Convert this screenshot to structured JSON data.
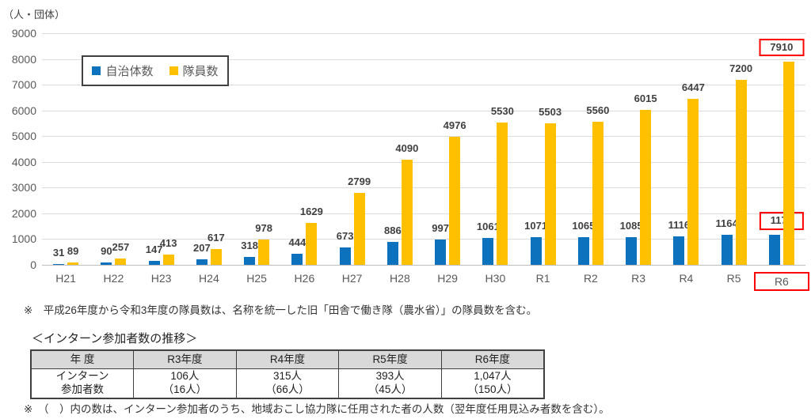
{
  "chart_data": [
    {
      "type": "bar",
      "title": "",
      "unit_label": "（人・団体）",
      "categories": [
        "H21",
        "H22",
        "H23",
        "H24",
        "H25",
        "H26",
        "H27",
        "H28",
        "H29",
        "H30",
        "R1",
        "R2",
        "R3",
        "R4",
        "R5",
        "R6"
      ],
      "series": [
        {
          "key": "municipalities",
          "name": "自治体数",
          "color": "#0D72BE",
          "values": [
            31,
            90,
            147,
            207,
            318,
            444,
            673,
            886,
            997,
            1061,
            1071,
            1065,
            1085,
            1116,
            1164,
            1176
          ]
        },
        {
          "key": "members",
          "name": "隊員数",
          "color": "#FFC000",
          "values": [
            89,
            257,
            413,
            617,
            978,
            1629,
            2799,
            4090,
            4976,
            5530,
            5503,
            5560,
            6015,
            6447,
            7200,
            7910
          ]
        }
      ],
      "xlabel": "",
      "ylabel": "",
      "ylim": [
        0,
        9000
      ],
      "ytick_step": 1000,
      "grid": true,
      "legend_position": "top-left-inside",
      "highlighted_category": "R6",
      "highlight_color": "#FF0000",
      "footnote": "※　平成26年度から令和3年度の隊員数は、名称を統一した旧「田舎で働き隊（農水省）」の隊員数を含む。"
    },
    {
      "type": "table",
      "title": "＜インターン参加者数の推移＞",
      "headers": [
        "年 度",
        "R3年度",
        "R4年度",
        "R5年度",
        "R6年度"
      ],
      "row_label": "インターン\n参加者数",
      "row_values": [
        "106人\n（16人）",
        "315人\n（66人）",
        "393人\n（45人）",
        "1,047人\n（150人）"
      ],
      "footnote": "※　（　）内の数は、インターン参加者のうち、地域おこし協力隊に任用された者の人数（翌年度任用見込み者数を含む）。"
    }
  ]
}
